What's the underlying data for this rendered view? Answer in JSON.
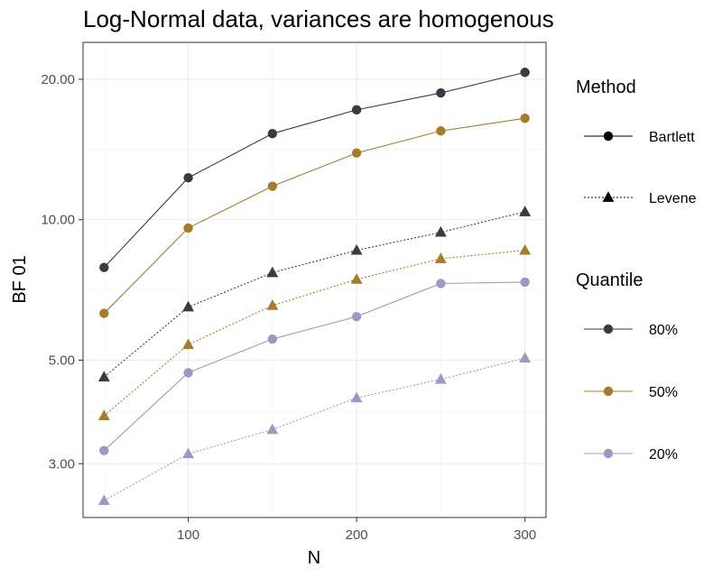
{
  "chart_data": {
    "type": "line",
    "title": "Log-Normal data, variances are homogenous",
    "xlabel": "N",
    "ylabel": "BF 01",
    "x": [
      50,
      100,
      150,
      200,
      250,
      300
    ],
    "x_ticks": [
      "100",
      "200",
      "300"
    ],
    "y_ticks": [
      "3.00",
      "5.00",
      "10.00",
      "20.00"
    ],
    "y_scale": "log",
    "xlim": [
      37.5,
      312.5
    ],
    "ylim": [
      2.3,
      24
    ],
    "grid": true,
    "legend_position": "right",
    "series": [
      {
        "method": "Bartlett",
        "quantile": "80%",
        "values": [
          7.9,
          12.3,
          15.3,
          17.2,
          18.7,
          20.7
        ]
      },
      {
        "method": "Bartlett",
        "quantile": "50%",
        "values": [
          6.3,
          9.6,
          11.8,
          13.9,
          15.5,
          16.5
        ]
      },
      {
        "method": "Bartlett",
        "quantile": "20%",
        "values": [
          3.2,
          4.7,
          5.55,
          6.2,
          7.3,
          7.35
        ]
      },
      {
        "method": "Levene",
        "quantile": "80%",
        "values": [
          4.6,
          6.5,
          7.7,
          8.6,
          9.4,
          10.4
        ]
      },
      {
        "method": "Levene",
        "quantile": "50%",
        "values": [
          3.8,
          5.4,
          6.55,
          7.45,
          8.25,
          8.6
        ]
      },
      {
        "method": "Levene",
        "quantile": "20%",
        "values": [
          2.5,
          3.15,
          3.55,
          4.15,
          4.55,
          5.05
        ]
      }
    ],
    "legend": {
      "method_title": "Method",
      "methods": [
        "Bartlett",
        "Levene"
      ],
      "quantile_title": "Quantile",
      "quantiles": [
        "80%",
        "50%",
        "20%"
      ]
    },
    "colors": {
      "80%": "#3a3a45",
      "50%": "#a67c2a",
      "20%": "#9c98c2"
    }
  }
}
